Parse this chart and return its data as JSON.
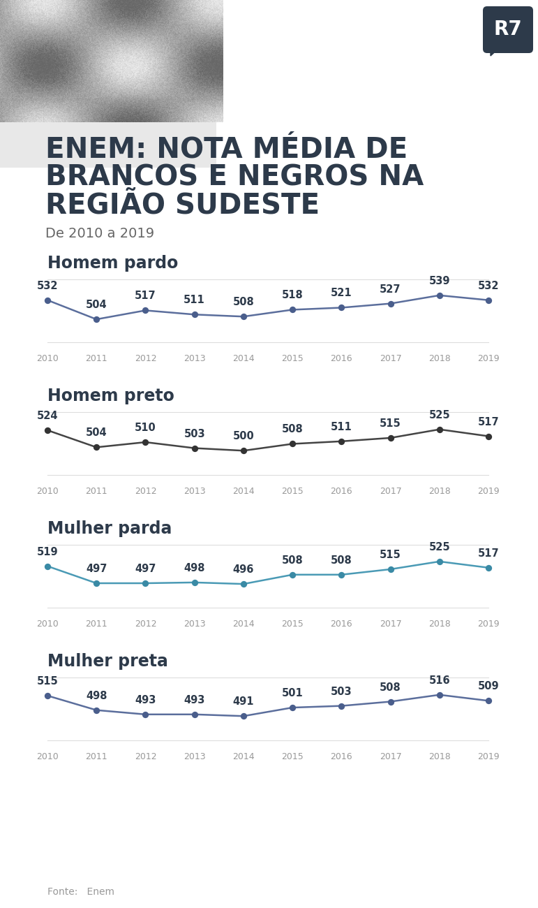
{
  "title_line1": "ENEM: NOTA MÉDIA DE",
  "title_line2": "BRANCOS E NEGROS NA",
  "title_line3": "REGIÃO SUDESTE",
  "subtitle": "De 2010 a 2019",
  "years": [
    2010,
    2011,
    2012,
    2013,
    2014,
    2015,
    2016,
    2017,
    2018,
    2019
  ],
  "series": [
    {
      "label": "Homem pardo",
      "values": [
        532,
        504,
        517,
        511,
        508,
        518,
        521,
        527,
        539,
        532
      ],
      "line_color": "#5b6e9c",
      "dot_color": "#4a5e8c"
    },
    {
      "label": "Homem preto",
      "values": [
        524,
        504,
        510,
        503,
        500,
        508,
        511,
        515,
        525,
        517
      ],
      "line_color": "#444444",
      "dot_color": "#333333"
    },
    {
      "label": "Mulher parda",
      "values": [
        519,
        497,
        497,
        498,
        496,
        508,
        508,
        515,
        525,
        517
      ],
      "line_color": "#4a9ab5",
      "dot_color": "#3a8aa5"
    },
    {
      "label": "Mulher preta",
      "values": [
        515,
        498,
        493,
        493,
        491,
        501,
        503,
        508,
        516,
        509
      ],
      "line_color": "#5b6e9c",
      "dot_color": "#4a5e8c"
    }
  ],
  "bg_color": "#ffffff",
  "header_bg": "#f0f0f0",
  "title_color": "#2d3a4a",
  "subtitle_color": "#666666",
  "label_color": "#2d3a4a",
  "value_color": "#2d3a4a",
  "year_color": "#999999",
  "line_sep_color": "#dddddd",
  "fonte_text": "Fonte:   Enem",
  "r7_bg": "#2d3a4a"
}
